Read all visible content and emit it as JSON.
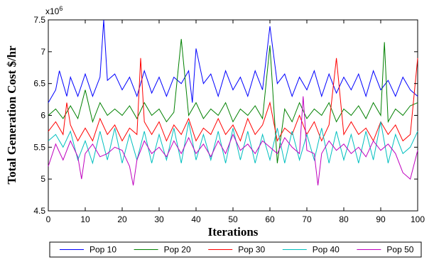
{
  "chart_data": {
    "type": "line",
    "title": "",
    "xlabel": "Iterations",
    "ylabel": "Total Generation Cost $/hr",
    "y_exponent_label": "x10",
    "y_exponent_power": "6",
    "xlim": [
      0,
      100
    ],
    "ylim": [
      4.5,
      7.5
    ],
    "xticks": [
      0,
      10,
      20,
      30,
      40,
      50,
      60,
      70,
      80,
      90,
      100
    ],
    "yticks": [
      4.5,
      5,
      5.5,
      6,
      6.5,
      7,
      7.5
    ],
    "ytick_labels": [
      "4.5",
      "5",
      "5.5",
      "6",
      "6.5",
      "7",
      "7.5"
    ],
    "grid": false,
    "legend_position": "bottom",
    "series": [
      {
        "name": "Pop 10",
        "color": "#0000ff",
        "x": [
          0,
          2,
          3,
          5,
          6,
          8,
          10,
          12,
          14,
          15,
          16,
          18,
          20,
          22,
          24,
          26,
          28,
          30,
          32,
          34,
          36,
          38,
          39,
          40,
          42,
          44,
          46,
          48,
          50,
          52,
          54,
          56,
          58,
          60,
          62,
          64,
          66,
          68,
          70,
          72,
          74,
          76,
          78,
          80,
          82,
          84,
          86,
          88,
          90,
          92,
          94,
          96,
          98,
          100
        ],
        "values": [
          6.2,
          6.4,
          6.7,
          6.3,
          6.6,
          6.3,
          6.65,
          6.3,
          6.6,
          7.5,
          6.55,
          6.65,
          6.4,
          6.6,
          6.3,
          6.7,
          6.35,
          6.6,
          6.3,
          6.6,
          6.5,
          6.7,
          6.2,
          7.05,
          6.5,
          6.65,
          6.3,
          6.7,
          6.4,
          6.6,
          6.3,
          6.7,
          6.4,
          7.4,
          6.5,
          6.65,
          6.3,
          6.6,
          6.4,
          6.7,
          6.3,
          6.65,
          6.35,
          6.6,
          6.4,
          6.65,
          6.3,
          6.7,
          6.4,
          6.55,
          6.3,
          6.6,
          6.4,
          6.3
        ]
      },
      {
        "name": "Pop 20",
        "color": "#008000",
        "x": [
          0,
          2,
          4,
          6,
          8,
          10,
          12,
          14,
          16,
          18,
          20,
          22,
          24,
          26,
          28,
          30,
          32,
          34,
          36,
          38,
          40,
          42,
          44,
          46,
          48,
          50,
          52,
          54,
          56,
          58,
          60,
          62,
          64,
          66,
          68,
          70,
          72,
          74,
          76,
          78,
          80,
          82,
          84,
          86,
          88,
          90,
          91,
          92,
          94,
          96,
          98,
          100
        ],
        "values": [
          6.0,
          6.1,
          5.95,
          6.15,
          5.95,
          6.4,
          5.9,
          6.2,
          6.0,
          6.1,
          6.0,
          6.15,
          5.95,
          6.2,
          6.0,
          6.1,
          5.9,
          6.05,
          7.2,
          6.0,
          6.2,
          5.95,
          6.1,
          6.0,
          6.2,
          5.9,
          6.1,
          6.0,
          6.15,
          5.95,
          7.1,
          5.25,
          6.1,
          5.9,
          6.2,
          5.95,
          6.1,
          6.0,
          6.2,
          5.9,
          6.1,
          6.0,
          6.15,
          5.95,
          6.2,
          6.0,
          7.15,
          5.9,
          6.1,
          6.0,
          6.15,
          6.2
        ]
      },
      {
        "name": "Pop 30",
        "color": "#ff0000",
        "x": [
          0,
          2,
          4,
          5,
          6,
          8,
          10,
          12,
          14,
          16,
          18,
          20,
          22,
          24,
          25,
          26,
          28,
          30,
          32,
          34,
          36,
          38,
          40,
          42,
          44,
          46,
          48,
          50,
          52,
          54,
          56,
          58,
          60,
          62,
          64,
          66,
          68,
          70,
          72,
          74,
          76,
          78,
          80,
          82,
          84,
          86,
          88,
          90,
          92,
          94,
          96,
          98,
          100
        ],
        "values": [
          5.75,
          5.9,
          5.7,
          6.2,
          5.85,
          5.6,
          5.8,
          5.6,
          5.95,
          5.7,
          5.85,
          5.6,
          5.8,
          5.7,
          6.9,
          5.9,
          5.7,
          5.9,
          5.6,
          5.85,
          5.7,
          5.95,
          5.6,
          5.8,
          5.7,
          5.95,
          5.7,
          5.85,
          5.6,
          5.95,
          5.7,
          5.85,
          6.2,
          5.6,
          5.8,
          5.7,
          6.0,
          5.7,
          5.9,
          5.6,
          5.85,
          6.9,
          5.7,
          5.9,
          5.7,
          5.8,
          5.6,
          5.9,
          5.7,
          5.85,
          5.6,
          5.7,
          6.9
        ]
      },
      {
        "name": "Pop 40",
        "color": "#00bfbf",
        "x": [
          0,
          2,
          4,
          6,
          8,
          10,
          12,
          14,
          16,
          18,
          20,
          22,
          24,
          26,
          28,
          30,
          32,
          34,
          36,
          38,
          40,
          42,
          44,
          46,
          48,
          50,
          52,
          54,
          56,
          58,
          60,
          62,
          64,
          66,
          68,
          70,
          72,
          74,
          76,
          78,
          80,
          82,
          84,
          86,
          88,
          90,
          92,
          94,
          96,
          98,
          100
        ],
        "values": [
          5.6,
          5.7,
          5.5,
          5.75,
          5.3,
          5.6,
          5.25,
          5.75,
          5.3,
          5.8,
          5.25,
          5.7,
          5.3,
          5.75,
          5.25,
          5.7,
          5.3,
          5.8,
          5.25,
          5.9,
          5.3,
          5.7,
          5.3,
          5.75,
          5.25,
          5.8,
          5.3,
          5.75,
          5.25,
          5.7,
          5.3,
          5.8,
          5.25,
          5.75,
          5.3,
          5.7,
          5.3,
          5.8,
          5.25,
          5.75,
          5.3,
          5.7,
          5.25,
          5.75,
          5.3,
          5.9,
          5.25,
          5.7,
          5.4,
          5.5,
          5.75
        ]
      },
      {
        "name": "Pop 50",
        "color": "#bf00bf",
        "x": [
          0,
          2,
          4,
          6,
          8,
          9,
          10,
          12,
          14,
          16,
          18,
          20,
          22,
          23,
          24,
          26,
          28,
          30,
          32,
          34,
          36,
          38,
          40,
          42,
          44,
          46,
          48,
          50,
          52,
          54,
          56,
          58,
          60,
          62,
          64,
          66,
          68,
          69,
          70,
          72,
          73,
          74,
          76,
          78,
          80,
          82,
          84,
          86,
          88,
          90,
          92,
          94,
          96,
          98,
          100
        ],
        "values": [
          5.2,
          5.55,
          5.3,
          5.6,
          5.35,
          5.0,
          5.4,
          5.55,
          5.35,
          5.4,
          5.5,
          5.45,
          5.2,
          4.9,
          5.3,
          5.6,
          5.4,
          5.5,
          5.35,
          5.6,
          5.4,
          5.65,
          5.4,
          5.55,
          5.35,
          5.6,
          5.4,
          5.7,
          5.45,
          5.55,
          5.4,
          5.6,
          5.5,
          5.4,
          5.65,
          5.5,
          5.4,
          6.3,
          5.45,
          5.4,
          4.9,
          5.4,
          5.6,
          5.45,
          5.55,
          5.4,
          5.5,
          5.35,
          5.6,
          5.45,
          5.55,
          5.4,
          5.1,
          5.0,
          5.45
        ]
      }
    ]
  }
}
